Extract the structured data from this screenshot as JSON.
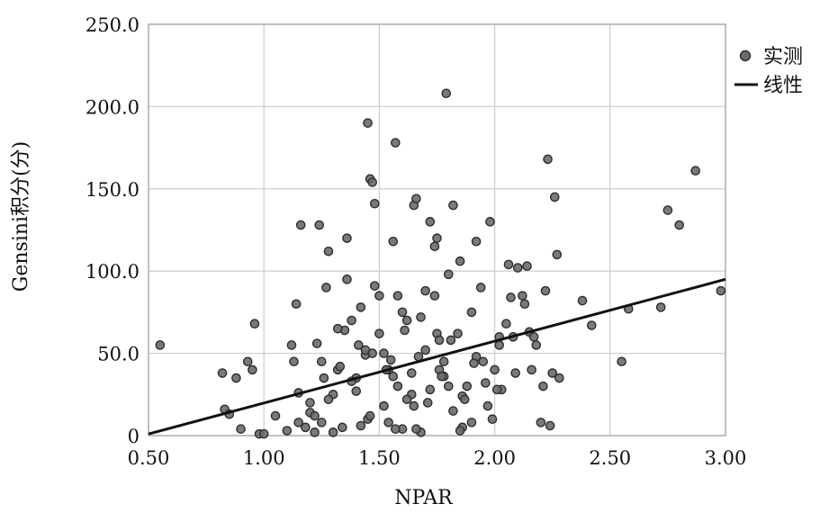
{
  "chart_data": {
    "type": "scatter",
    "title": "",
    "xlabel": "NPAR",
    "ylabel": "Gensini积分(分)",
    "xlim": [
      0.5,
      3.0
    ],
    "ylim": [
      0,
      250
    ],
    "x_ticks": [
      "0.50",
      "1.00",
      "1.50",
      "2.00",
      "2.50",
      "3.00"
    ],
    "y_ticks": [
      "0",
      "50.0",
      "100.0",
      "150.0",
      "200.0",
      "250.0"
    ],
    "grid": true,
    "legend_position": "top-right",
    "legend": [
      {
        "label": "实测",
        "symbol": "circle",
        "color": "#666666"
      },
      {
        "label": "线性",
        "symbol": "line",
        "color": "#111111"
      }
    ],
    "fit_line": {
      "x": [
        0.5,
        3.0
      ],
      "y": [
        1,
        95
      ]
    },
    "series": [
      {
        "name": "实测",
        "x": [
          0.55,
          0.82,
          0.83,
          0.85,
          0.88,
          0.9,
          0.93,
          0.95,
          0.96,
          0.98,
          1.0,
          1.05,
          1.1,
          1.12,
          1.13,
          1.14,
          1.15,
          1.16,
          1.18,
          1.2,
          1.22,
          1.23,
          1.24,
          1.25,
          1.26,
          1.27,
          1.28,
          1.3,
          1.32,
          1.34,
          1.36,
          1.38,
          1.4,
          1.42,
          1.44,
          1.45,
          1.46,
          1.47,
          1.48,
          1.5,
          1.52,
          1.54,
          1.56,
          1.57,
          1.58,
          1.6,
          1.62,
          1.64,
          1.65,
          1.66,
          1.68,
          1.7,
          1.72,
          1.74,
          1.75,
          1.76,
          1.78,
          1.79,
          1.8,
          1.82,
          1.84,
          1.85,
          1.86,
          1.88,
          1.9,
          1.92,
          1.94,
          1.95,
          1.97,
          1.98,
          2.0,
          2.02,
          2.03,
          2.05,
          2.06,
          2.08,
          2.1,
          2.12,
          2.14,
          2.15,
          2.16,
          2.18,
          2.2,
          2.21,
          2.22,
          2.23,
          2.24,
          2.25,
          2.26,
          2.27,
          2.28,
          2.38,
          2.42,
          2.55,
          2.58,
          2.72,
          2.75,
          2.8,
          2.87,
          2.98,
          1.2,
          1.3,
          1.4,
          1.5,
          1.6,
          1.7,
          1.8,
          1.9,
          1.35,
          1.45,
          1.55,
          1.65,
          1.75,
          1.85,
          1.25,
          1.58,
          1.62,
          1.44,
          1.52,
          1.68,
          1.38,
          1.48,
          1.72,
          1.78,
          1.33,
          1.42,
          1.56,
          1.64,
          1.74,
          1.82,
          1.92,
          2.02,
          1.28,
          1.36,
          1.46,
          1.54,
          1.66,
          1.76,
          1.86,
          1.96,
          1.22,
          1.32,
          1.47,
          1.57,
          1.67,
          1.77,
          1.87,
          1.99,
          2.07,
          2.13,
          1.15,
          1.41,
          1.53,
          1.61,
          1.71,
          1.81,
          1.91,
          2.01,
          2.09,
          2.17
        ],
        "y": [
          55,
          38,
          16,
          13,
          35,
          4,
          45,
          40,
          68,
          1,
          1,
          12,
          3,
          55,
          45,
          80,
          8,
          128,
          5,
          20,
          2,
          56,
          128,
          8,
          35,
          90,
          112,
          2,
          40,
          5,
          120,
          70,
          27,
          78,
          49,
          190,
          156,
          154,
          141,
          62,
          50,
          8,
          118,
          178,
          30,
          4,
          70,
          25,
          140,
          144,
          2,
          88,
          130,
          115,
          120,
          40,
          45,
          208,
          98,
          140,
          62,
          106,
          5,
          30,
          75,
          118,
          90,
          45,
          18,
          130,
          40,
          55,
          28,
          68,
          104,
          60,
          102,
          85,
          103,
          63,
          40,
          55,
          8,
          30,
          88,
          168,
          6,
          38,
          145,
          110,
          35,
          82,
          67,
          45,
          77,
          78,
          137,
          128,
          161,
          88,
          14,
          25,
          35,
          85,
          75,
          52,
          30,
          8,
          64,
          10,
          46,
          18,
          62,
          3,
          45,
          85,
          22,
          52,
          18,
          72,
          33,
          91,
          28,
          36,
          42,
          6,
          36,
          38,
          85,
          15,
          48,
          60,
          22,
          95,
          12,
          40,
          4,
          58,
          24,
          32,
          12,
          65,
          50,
          4,
          48,
          36,
          22,
          10,
          84,
          80,
          26,
          55,
          40,
          64,
          20,
          58,
          44,
          28,
          38,
          60
        ]
      }
    ]
  },
  "colors": {
    "point_fill": "#6b6b6b",
    "point_stroke": "#2e2e2e",
    "grid": "#d0d0d0",
    "fit_line": "#111111",
    "axis": "#222222"
  }
}
